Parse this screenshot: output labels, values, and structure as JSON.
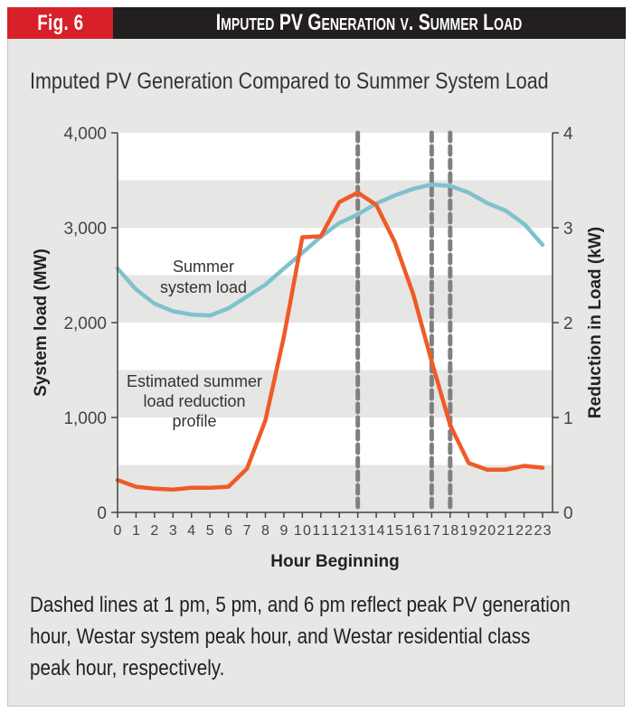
{
  "header": {
    "badge": "Fig. 6",
    "title": "Imputed PV Generation v. Summer Load"
  },
  "subtitle": "Imputed PV Generation Compared to Summer System Load",
  "caption": "Dashed lines at 1 pm, 5 pm, and 6 pm reflect peak PV generation hour, Westar system peak hour, and Westar residential class peak hour, respectively.",
  "colors": {
    "header_bg": "#231f20",
    "badge_bg": "#d8202a",
    "system_load": "#7fc1cc",
    "load_reduction": "#f05a28",
    "dashed": "#808080",
    "band": "#e6e6e4"
  },
  "chart_data": {
    "type": "line",
    "title": "Imputed PV Generation Compared to Summer System Load",
    "xlabel": "Hour Beginning",
    "ylabel": "System load (MW)",
    "y2label": "Reduction in Load (kW)",
    "x": [
      0,
      1,
      2,
      3,
      4,
      5,
      6,
      7,
      8,
      9,
      10,
      11,
      12,
      13,
      14,
      15,
      16,
      17,
      18,
      19,
      20,
      21,
      22,
      23
    ],
    "xticks": [
      "0",
      "1",
      "2",
      "3",
      "4",
      "5",
      "6",
      "7",
      "8",
      "9",
      "10",
      "11",
      "12",
      "13",
      "14",
      "15",
      "16",
      "17",
      "18",
      "19",
      "20",
      "21",
      "22",
      "23"
    ],
    "ylim": [
      0,
      4000
    ],
    "yticks": [
      "0",
      "1,000",
      "2,000",
      "3,000",
      "4,000"
    ],
    "ytick_values": [
      0,
      1000,
      2000,
      3000,
      4000
    ],
    "y2lim": [
      0,
      4
    ],
    "y2ticks": [
      "0",
      "1",
      "2",
      "3",
      "4"
    ],
    "y2tick_values": [
      0,
      1,
      2,
      3,
      4
    ],
    "grid": "alternating horizontal bands",
    "series": [
      {
        "name": "Summer system load",
        "axis": "left",
        "label": [
          "Summer",
          "system load"
        ],
        "values": [
          2570,
          2350,
          2200,
          2120,
          2085,
          2075,
          2150,
          2275,
          2400,
          2570,
          2735,
          2905,
          3050,
          3140,
          3255,
          3340,
          3410,
          3455,
          3440,
          3370,
          3260,
          3180,
          3040,
          2820
        ]
      },
      {
        "name": "Estimated summer load reduction profile",
        "axis": "right",
        "label": [
          "Estimated summer",
          "load reduction",
          "profile"
        ],
        "values": [
          0.34,
          0.27,
          0.25,
          0.24,
          0.26,
          0.26,
          0.27,
          0.46,
          0.97,
          1.85,
          2.9,
          2.91,
          3.27,
          3.37,
          3.24,
          2.85,
          2.3,
          1.59,
          0.92,
          0.52,
          0.45,
          0.45,
          0.49,
          0.47
        ]
      }
    ],
    "vlines": [
      {
        "x": 13,
        "meaning": "peak PV generation hour (1 pm)"
      },
      {
        "x": 17,
        "meaning": "Westar system peak hour (5 pm)"
      },
      {
        "x": 18,
        "meaning": "Westar residential class peak hour (6 pm)"
      }
    ]
  }
}
